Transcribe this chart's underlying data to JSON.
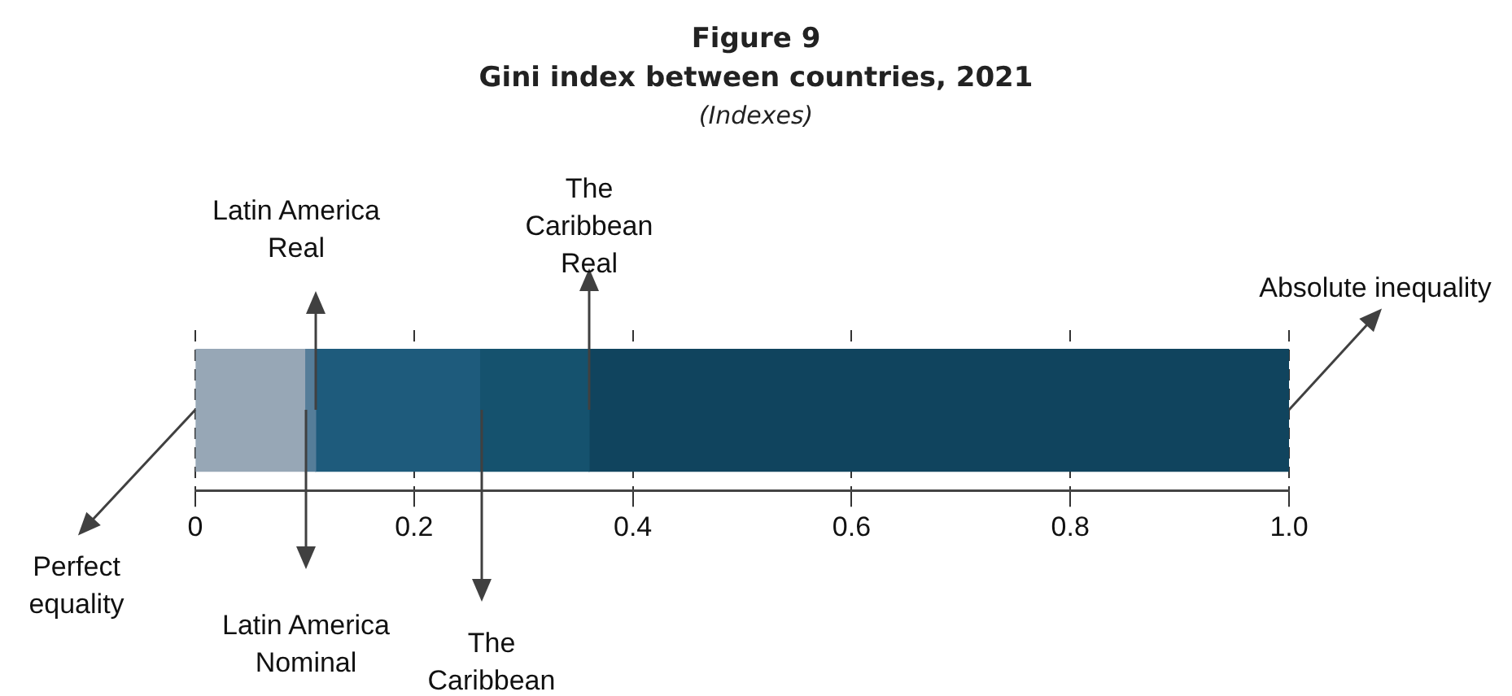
{
  "chart_data": {
    "type": "bar",
    "orientation": "horizontal",
    "stacked": true,
    "title": "Figure 9\nGini index between countries, 2021",
    "subtitle": "(Indexes)",
    "categories": [
      null
    ],
    "series": [
      {
        "color": "#97a7b6",
        "values": [
          0.1
        ]
      },
      {
        "color": "#557d99",
        "values": [
          0.01
        ]
      },
      {
        "color": "#1e5b7c",
        "values": [
          0.15
        ]
      },
      {
        "color": "#15526e",
        "values": [
          0.1
        ]
      },
      {
        "color": "#10445e",
        "values": [
          0.64
        ]
      }
    ],
    "xlim": [
      0,
      1
    ],
    "xticks": [
      0,
      0.2,
      0.4,
      0.6,
      0.8,
      {
        "value": 1,
        "label": "1.0"
      }
    ],
    "grid": "x",
    "legend": false,
    "annotations": [
      "Perfect\nequality",
      "Latin America\nNominal",
      "Latin America\nReal",
      "The\nCaribbean",
      "The\nCaribbean\nReal",
      "Absolute inequality"
    ]
  }
}
